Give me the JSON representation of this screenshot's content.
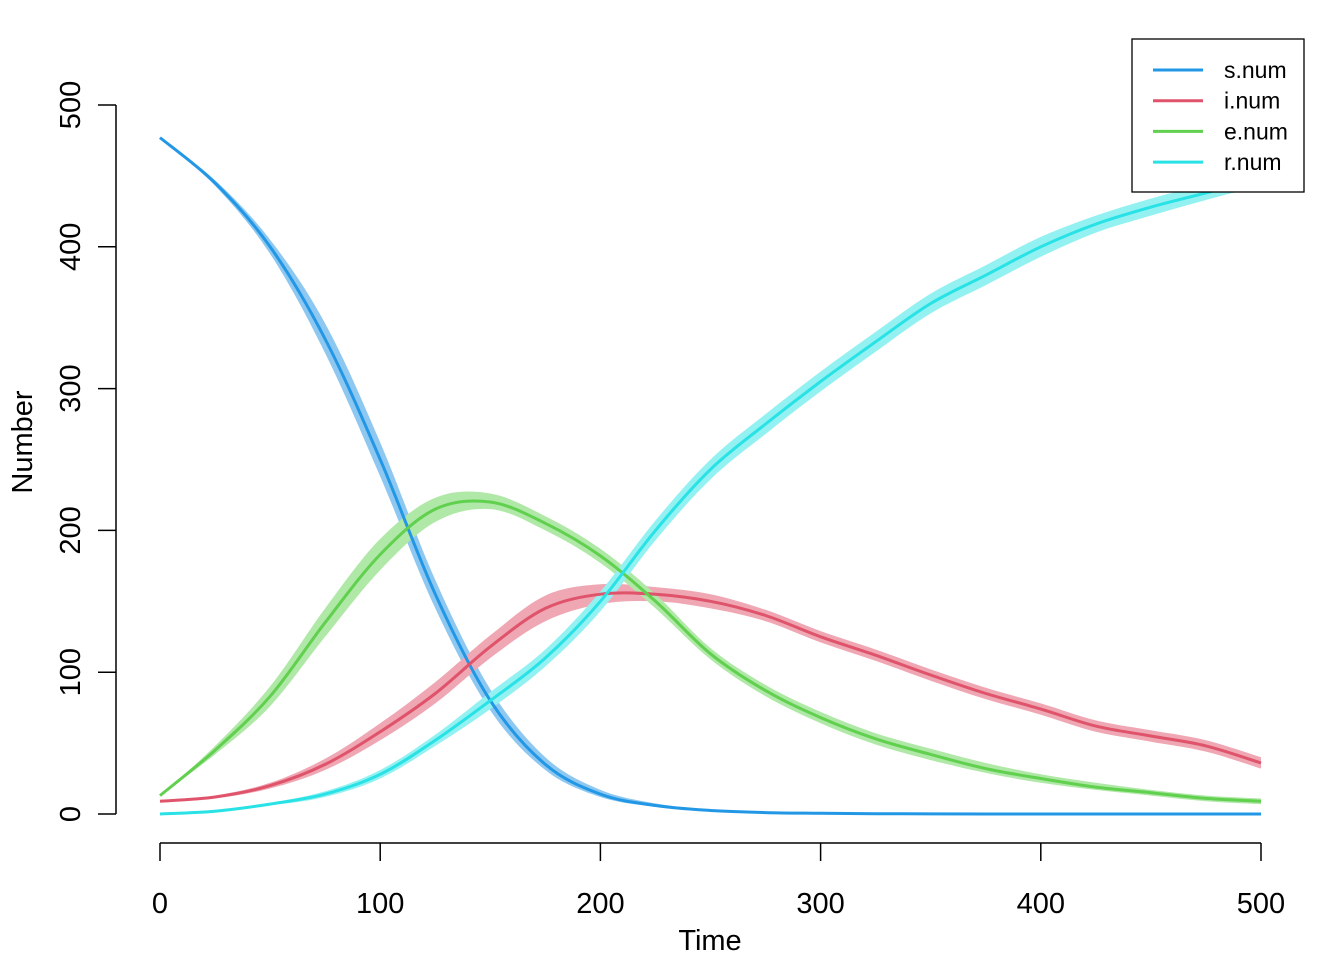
{
  "chart_data": {
    "type": "line",
    "xlabel": "Time",
    "ylabel": "Number",
    "xlim": [
      0,
      500
    ],
    "ylim": [
      0,
      500
    ],
    "x_ticks": [
      0,
      100,
      200,
      300,
      400,
      500
    ],
    "y_ticks": [
      0,
      100,
      200,
      300,
      400,
      500
    ],
    "grid": false,
    "legend_position": "top-right",
    "x": [
      0,
      25,
      50,
      75,
      100,
      125,
      150,
      175,
      200,
      225,
      250,
      275,
      300,
      325,
      350,
      375,
      400,
      425,
      450,
      475,
      500
    ],
    "series": [
      {
        "name": "s.num",
        "color": "#2297E6",
        "band_color": "#8EC8F0",
        "values": [
          477,
          445,
          400,
          335,
          250,
          155,
          80,
          35,
          14,
          6,
          2.5,
          1,
          0.5,
          0.2,
          0.1,
          0,
          0,
          0,
          0,
          0,
          0
        ],
        "lower": [
          477,
          443,
          395,
          325,
          238,
          145,
          73,
          31,
          12,
          5,
          2,
          0.8,
          0.4,
          0.1,
          0,
          0,
          0,
          0,
          0,
          0,
          0
        ],
        "upper": [
          477,
          447,
          405,
          346,
          262,
          165,
          88,
          40,
          17,
          7.5,
          3,
          1.3,
          0.6,
          0.3,
          0.1,
          0.1,
          0,
          0,
          0,
          0,
          0
        ]
      },
      {
        "name": "i.num",
        "color": "#DF536B",
        "band_color": "#EFA7B3",
        "values": [
          9,
          12,
          20,
          35,
          58,
          85,
          118,
          145,
          155,
          155,
          150,
          140,
          125,
          112,
          98,
          85,
          74,
          62,
          55,
          48,
          36
        ],
        "lower": [
          9,
          11,
          18,
          31,
          52,
          78,
          110,
          136,
          148,
          150,
          145,
          136,
          121,
          108,
          94,
          81,
          70,
          58,
          51,
          44,
          32
        ],
        "upper": [
          9,
          13,
          22,
          39,
          64,
          93,
          126,
          154,
          162,
          160,
          155,
          144,
          129,
          116,
          102,
          89,
          78,
          66,
          59,
          52,
          40
        ]
      },
      {
        "name": "e.num",
        "color": "#61D04F",
        "band_color": "#B0E8A7",
        "values": [
          13,
          45,
          83,
          135,
          183,
          215,
          220,
          205,
          182,
          150,
          113,
          87,
          68,
          53,
          42,
          32,
          25,
          19,
          15,
          11,
          9
        ],
        "lower": [
          13,
          42,
          76,
          125,
          172,
          206,
          215,
          200,
          177,
          145,
          109,
          83,
          64,
          49,
          38,
          29,
          22,
          17,
          13,
          9,
          7
        ],
        "upper": [
          13,
          48,
          90,
          145,
          194,
          223,
          226,
          210,
          187,
          155,
          117,
          91,
          72,
          57,
          46,
          36,
          28,
          22,
          17,
          13,
          11
        ]
      },
      {
        "name": "r.num",
        "color": "#28E2E5",
        "band_color": "#93F1F2",
        "values": [
          0,
          2,
          7,
          14,
          28,
          52,
          80,
          110,
          150,
          200,
          243,
          275,
          305,
          333,
          360,
          380,
          400,
          416,
          428,
          438,
          448
        ],
        "lower": [
          0,
          2,
          6,
          12,
          25,
          48,
          74,
          104,
          143,
          193,
          236,
          268,
          298,
          326,
          353,
          373,
          393,
          410,
          422,
          433,
          443
        ],
        "upper": [
          0,
          3,
          8,
          16,
          31,
          56,
          86,
          116,
          157,
          207,
          250,
          282,
          312,
          340,
          367,
          387,
          407,
          422,
          434,
          444,
          453
        ]
      }
    ]
  }
}
